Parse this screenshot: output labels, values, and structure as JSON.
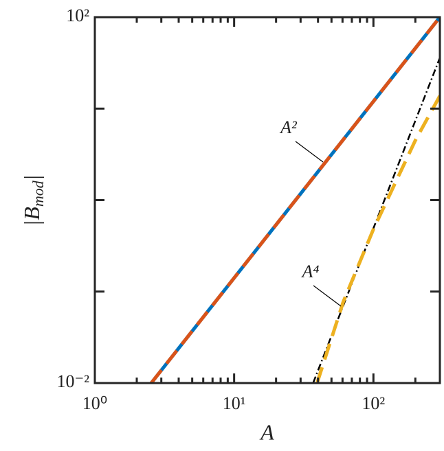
{
  "chart_data": {
    "type": "line",
    "xlabel": "A",
    "ylabel_parts": [
      "|B",
      "mod",
      "|"
    ],
    "xscale": "log",
    "yscale": "log",
    "xlim": [
      1,
      300
    ],
    "ylim": [
      0.01,
      100
    ],
    "xticks": [
      {
        "value": 1,
        "label": "10⁰"
      },
      {
        "value": 10,
        "label": "10¹"
      },
      {
        "value": 100,
        "label": "10²"
      }
    ],
    "xminorticks": [
      2,
      3,
      4,
      5,
      6,
      7,
      8,
      9,
      20,
      30,
      40,
      50,
      60,
      70,
      80,
      90,
      200
    ],
    "yticks": [
      {
        "value": 0.01,
        "label": "10⁻²"
      },
      {
        "value": 100,
        "label": "10²"
      }
    ],
    "yunlabeledticks": [
      0.1,
      1,
      10
    ],
    "series": [
      {
        "color": "#0072bd",
        "style": "solid",
        "x": [
          2.54,
          300
        ],
        "values": [
          0.01,
          100
        ]
      },
      {
        "color": "#d95319",
        "style": "dash",
        "x": [
          2.54,
          300
        ],
        "values": [
          0.01,
          100
        ]
      },
      {
        "color": "#000000",
        "style": "dashdot",
        "x": [
          36.9,
          300
        ],
        "values": [
          0.01,
          36
        ]
      },
      {
        "color": "#edb120",
        "style": "dash",
        "x": [
          39.4,
          60.7,
          100,
          200,
          300
        ],
        "values": [
          0.01,
          0.077,
          0.48,
          4.5,
          13.8
        ]
      }
    ],
    "annotations": [
      {
        "text": "A²"
      },
      {
        "text": "A⁴"
      }
    ]
  }
}
